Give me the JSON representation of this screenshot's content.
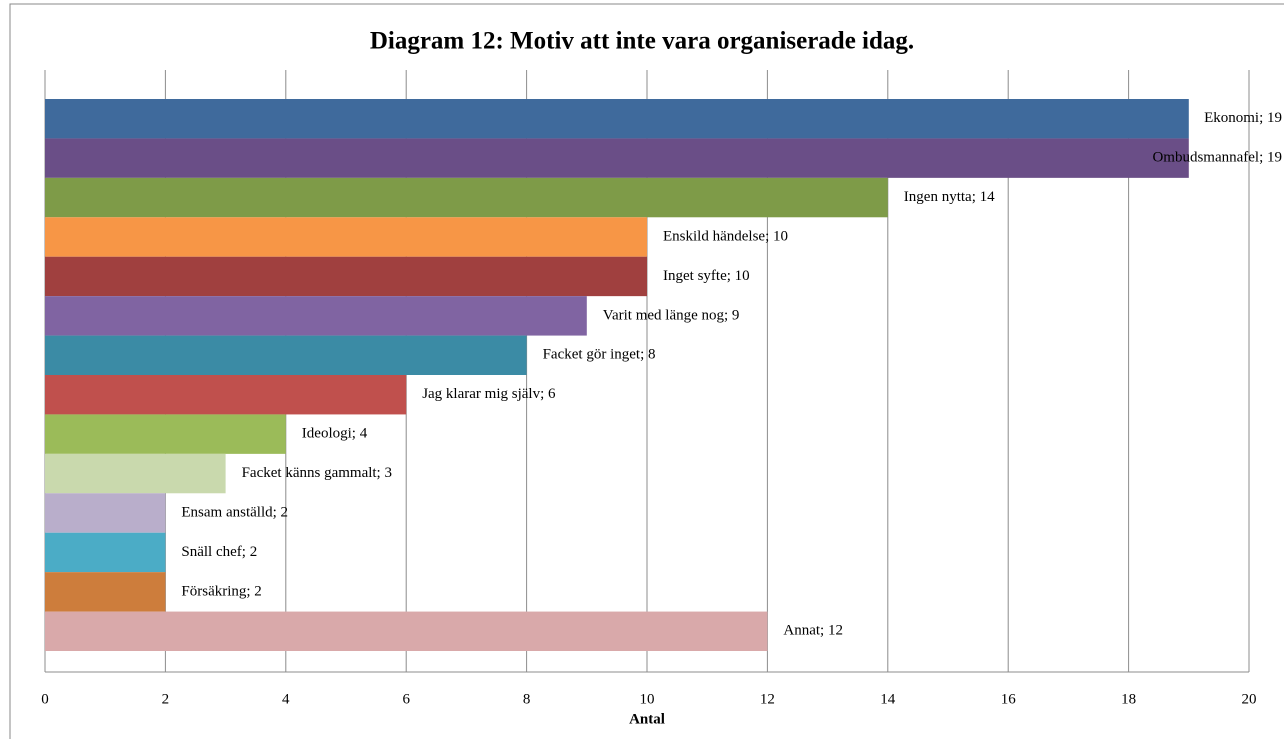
{
  "chart_data": {
    "type": "hbar",
    "title": "Diagram 12: Motiv att inte vara organiserade idag.",
    "values": [
      19,
      19,
      14,
      10,
      10,
      9,
      8,
      6,
      4,
      3,
      2,
      2,
      2,
      12
    ],
    "value_labels": [
      "Ekonomi; 19",
      "Ombudsmannafel; 19",
      "Ingen nytta; 14",
      "Enskild händelse; 10",
      "Inget syfte; 10",
      "Varit med länge nog; 9",
      "Facket gör inget; 8",
      "Jag klarar mig själv; 6",
      "Ideologi; 4",
      "Facket känns gammalt; 3",
      "Ensam anställd; 2",
      "Snäll chef; 2",
      "Försäkring; 2",
      "Annat; 12"
    ],
    "colors": [
      "#3f6a9c",
      "#6a4e87",
      "#7e9b48",
      "#f79646",
      "#a0403f",
      "#8064a2",
      "#3b8ba5",
      "#c0504d",
      "#9bbb59",
      "#c9d9ad",
      "#b9aecb",
      "#4bacc6",
      "#cd7d3c",
      "#d9a9aa"
    ],
    "xlabel": "Antal",
    "xlim": [
      0,
      20
    ],
    "xticks": [
      0,
      2,
      4,
      6,
      8,
      10,
      12,
      14,
      16,
      18,
      20
    ],
    "grid": true
  }
}
